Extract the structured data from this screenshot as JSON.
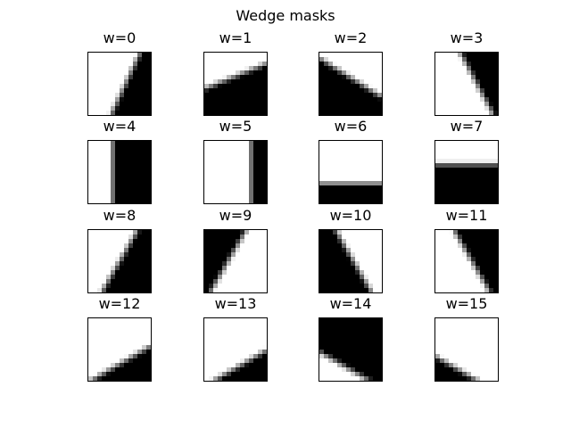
{
  "figure": {
    "suptitle": "Wedge masks",
    "colors": {
      "masked": "#000000",
      "unmasked": "#ffffff",
      "frame": "#000000"
    },
    "panels": [
      {
        "title": "w=0",
        "angle_deg": 65,
        "dark_side": "right"
      },
      {
        "title": "w=1",
        "angle_deg": 22,
        "dark_side": "below"
      },
      {
        "title": "w=2",
        "angle_deg": 148,
        "dark_side": "below"
      },
      {
        "title": "w=3",
        "angle_deg": 118,
        "dark_side": "right"
      },
      {
        "title": "w=4",
        "angle_deg": 90,
        "dark_side": "right"
      },
      {
        "title": "w=5",
        "angle_deg": 90,
        "dark_side": "right"
      },
      {
        "title": "w=6",
        "angle_deg": 0,
        "dark_side": "below"
      },
      {
        "title": "w=7",
        "angle_deg": 0,
        "dark_side": "below"
      },
      {
        "title": "w=8",
        "angle_deg": 60,
        "dark_side": "right"
      },
      {
        "title": "w=9",
        "angle_deg": 60,
        "dark_side": "left"
      },
      {
        "title": "w=10",
        "angle_deg": 120,
        "dark_side": "left"
      },
      {
        "title": "w=11",
        "angle_deg": 120,
        "dark_side": "right"
      },
      {
        "title": "w=12",
        "angle_deg": 30,
        "dark_side": "below"
      },
      {
        "title": "w=13",
        "angle_deg": 30,
        "dark_side": "below"
      },
      {
        "title": "w=14",
        "angle_deg": 150,
        "dark_side": "above"
      },
      {
        "title": "w=15",
        "angle_deg": 150,
        "dark_side": "below"
      }
    ]
  }
}
